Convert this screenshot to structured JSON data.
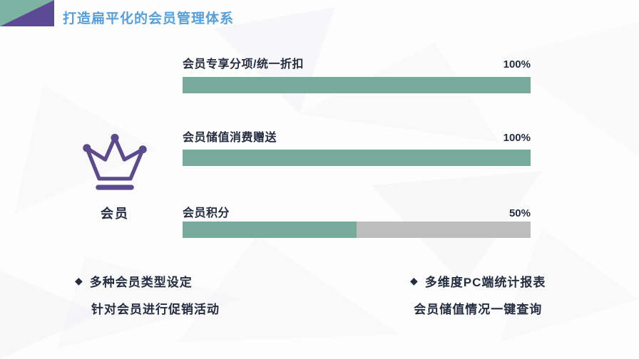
{
  "header": {
    "title": "打造扁平化的会员管理体系"
  },
  "member": {
    "label": "会员",
    "icon": "crown-icon"
  },
  "chart_data": {
    "type": "bar",
    "orientation": "horizontal",
    "title": "",
    "categories": [
      "会员专享分项/统一折扣",
      "会员储值消费赠送",
      "会员积分"
    ],
    "values": [
      100,
      100,
      50
    ],
    "value_labels": [
      "100%",
      "100%",
      "50%"
    ],
    "xlim": [
      0,
      100
    ],
    "grid": false,
    "legend": "none",
    "bar_color": "#76AB9C",
    "track_color": "#BDBDBD"
  },
  "bullets": {
    "left": {
      "marker": "◆",
      "lines": [
        "多种会员类型设定",
        "针对会员进行促销活动"
      ]
    },
    "right": {
      "marker": "◆",
      "lines": [
        "多维度PC端统计报表",
        "会员储值情况一键查询"
      ]
    }
  },
  "colors": {
    "title_blue": "#55A0DC",
    "deco_teal": "#7CB3A2",
    "deco_purple": "#5C4B94",
    "crown_purple": "#5C4B8C",
    "text_dark": "#242C40",
    "bar_green": "#76AB9C",
    "bar_gray": "#BDBDBD"
  }
}
